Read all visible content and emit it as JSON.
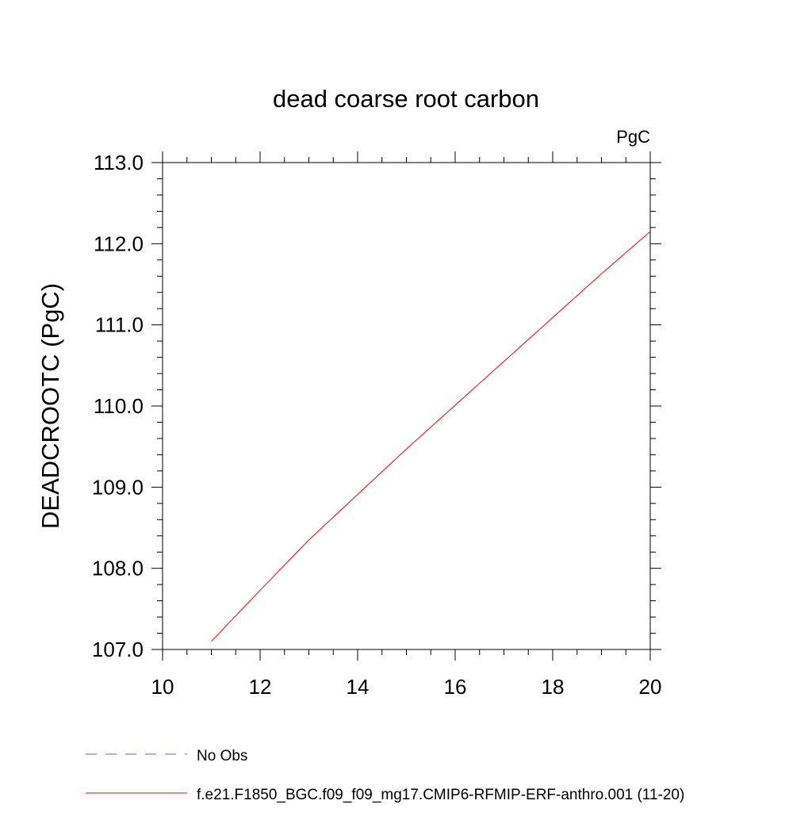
{
  "chart_data": {
    "type": "line",
    "title": "dead coarse root carbon",
    "units_label": "PgC",
    "xlabel": "",
    "ylabel": "DEADCROOTC  (PgC)",
    "xlim": [
      10,
      20
    ],
    "ylim": [
      107.0,
      113.0
    ],
    "x_ticks": [
      10,
      12,
      14,
      16,
      18,
      20
    ],
    "x_tick_labels": [
      "10",
      "12",
      "14",
      "16",
      "18",
      "20"
    ],
    "y_ticks": [
      107.0,
      108.0,
      109.0,
      110.0,
      111.0,
      112.0,
      113.0
    ],
    "y_tick_labels": [
      "107.0",
      "108.0",
      "109.0",
      "110.0",
      "111.0",
      "112.0",
      "113.0"
    ],
    "grid": false,
    "legend_position": "bottom",
    "series": [
      {
        "name": "f.e21.F1850_BGC.f09_f09_mg17.CMIP6-RFMIP-ERF-anthro.001 (11-20)",
        "color": "#ff0000",
        "style": "solid",
        "x": [
          11,
          12,
          13,
          14,
          15,
          16,
          17,
          18,
          19,
          20
        ],
        "y": [
          107.1,
          107.73,
          108.35,
          108.91,
          109.47,
          110.01,
          110.55,
          111.09,
          111.63,
          112.15
        ]
      }
    ],
    "legend": [
      {
        "label": "No Obs",
        "color": "#6a5acd",
        "style": "dashed"
      },
      {
        "label": "f.e21.F1850_BGC.f09_f09_mg17.CMIP6-RFMIP-ERF-anthro.001 (11-20)",
        "color": "#ff0000",
        "style": "solid"
      }
    ]
  }
}
